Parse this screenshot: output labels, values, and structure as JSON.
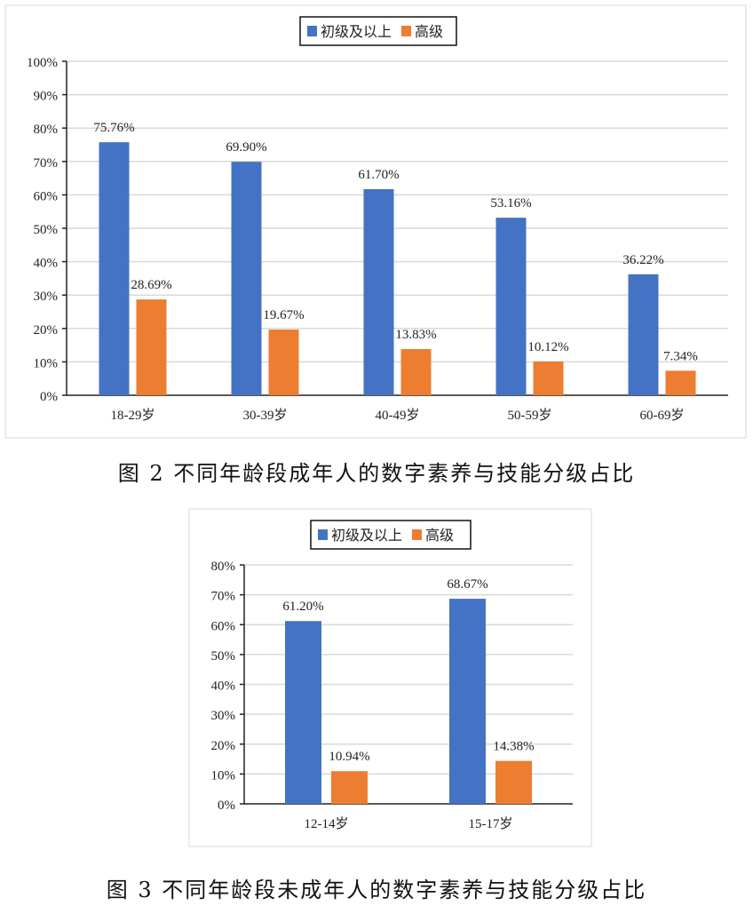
{
  "colors": {
    "primary": "#4472c4",
    "advanced": "#ed7d31",
    "grid": "#d9d9d9"
  },
  "chart_data": [
    {
      "type": "bar",
      "caption": "图 2  不同年龄段成年人的数字素养与技能分级占比",
      "categories": [
        "18-29岁",
        "30-39岁",
        "40-49岁",
        "50-59岁",
        "60-69岁"
      ],
      "series": [
        {
          "name": "初级及以上",
          "values": [
            75.76,
            69.9,
            61.7,
            53.16,
            36.22
          ],
          "labels": [
            "75.76%",
            "69.90%",
            "61.70%",
            "53.16%",
            "36.22%"
          ]
        },
        {
          "name": "高级",
          "values": [
            28.69,
            19.67,
            13.83,
            10.12,
            7.34
          ],
          "labels": [
            "28.69%",
            "19.67%",
            "13.83%",
            "10.12%",
            "7.34%"
          ]
        }
      ],
      "ylim": [
        0,
        100
      ],
      "yticks": [
        "0%",
        "10%",
        "20%",
        "30%",
        "40%",
        "50%",
        "60%",
        "70%",
        "80%",
        "90%",
        "100%"
      ],
      "grid": true,
      "legend": "top-center"
    },
    {
      "type": "bar",
      "caption": "图 3  不同年龄段未成年人的数字素养与技能分级占比",
      "categories": [
        "12-14岁",
        "15-17岁"
      ],
      "series": [
        {
          "name": "初级及以上",
          "values": [
            61.2,
            68.67
          ],
          "labels": [
            "61.20%",
            "68.67%"
          ]
        },
        {
          "name": "高级",
          "values": [
            10.94,
            14.38
          ],
          "labels": [
            "10.94%",
            "14.38%"
          ]
        }
      ],
      "ylim": [
        0,
        80
      ],
      "yticks": [
        "0%",
        "10%",
        "20%",
        "30%",
        "40%",
        "50%",
        "60%",
        "70%",
        "80%"
      ],
      "grid": true,
      "legend": "top-center"
    }
  ]
}
